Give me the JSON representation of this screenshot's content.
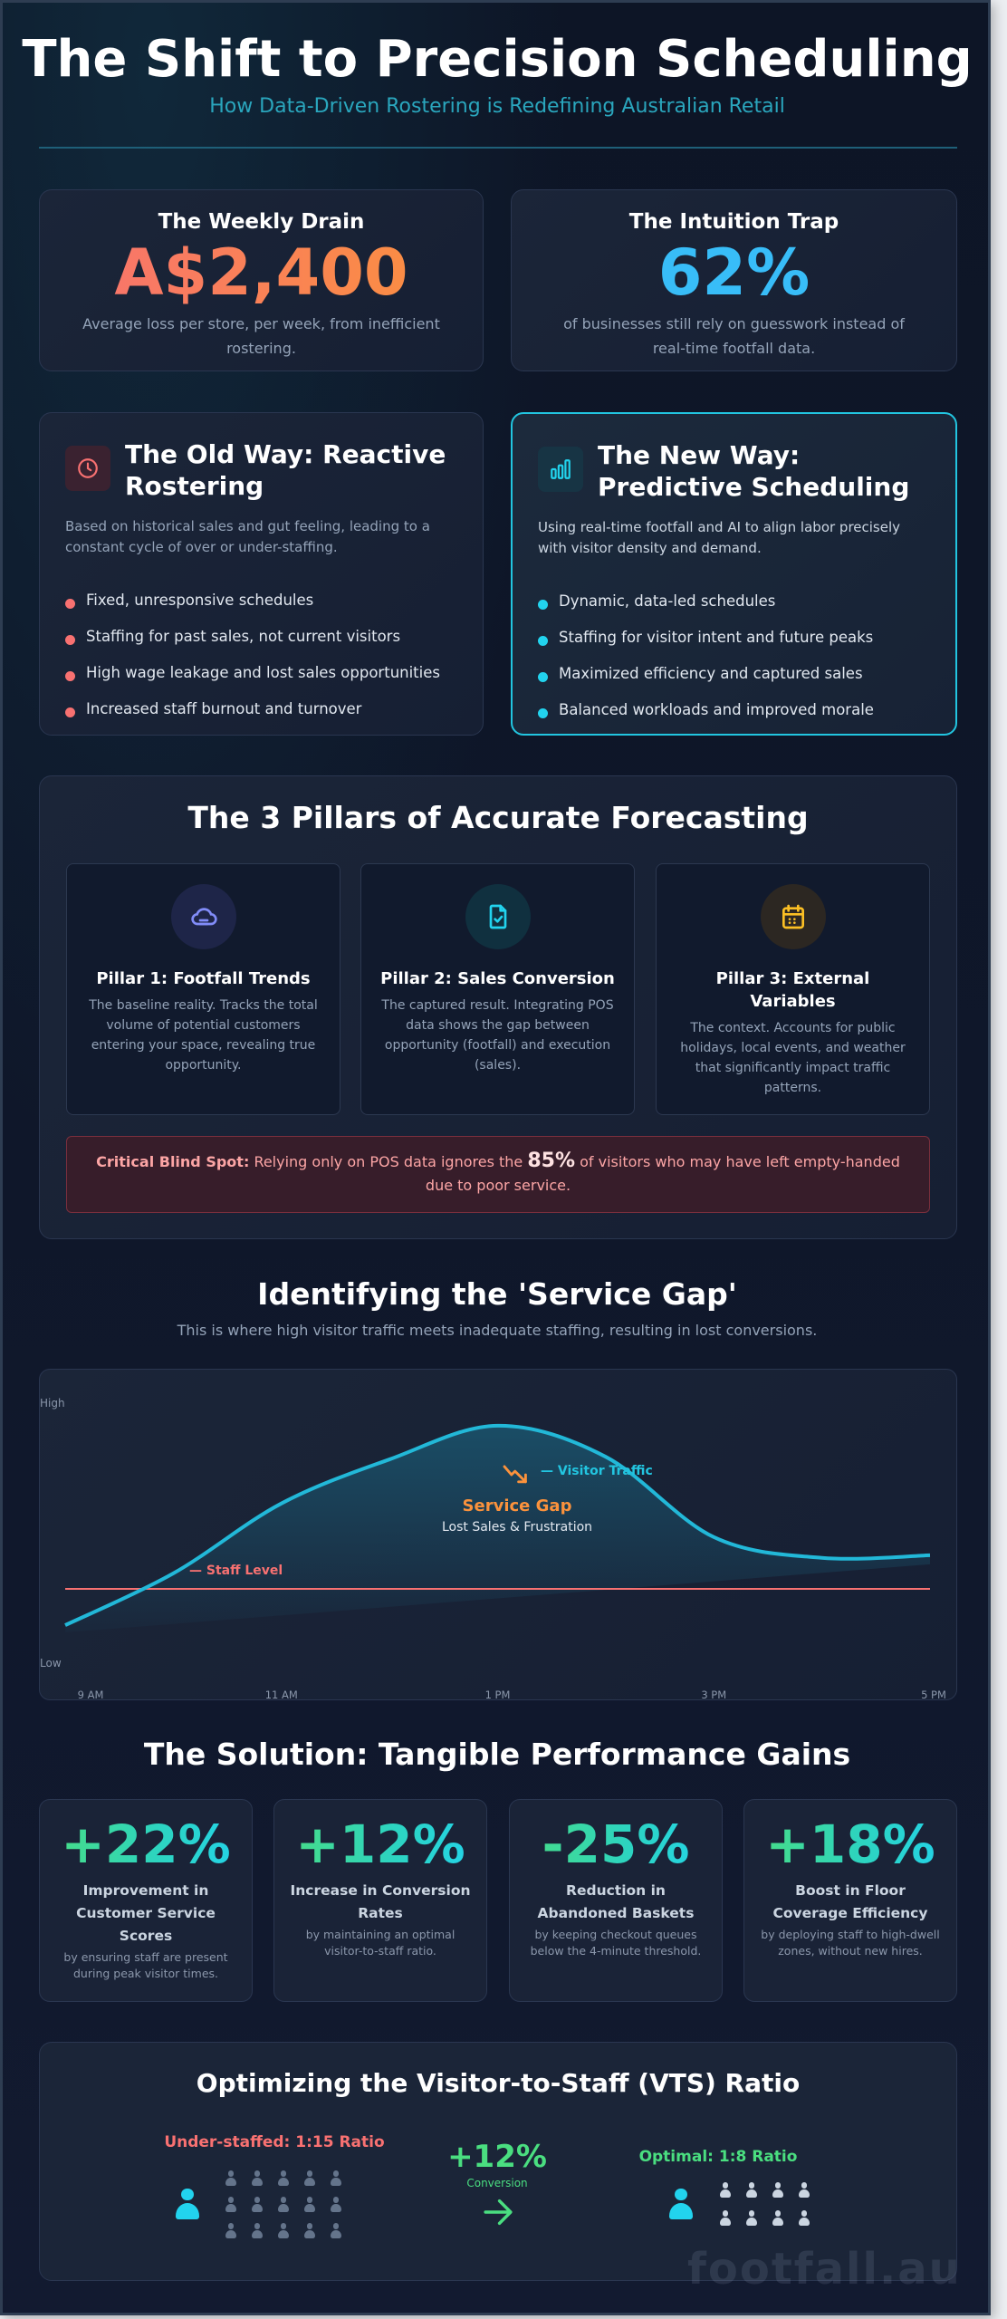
{
  "header": {
    "title": "The Shift to Precision Scheduling",
    "subtitle": "How Data-Driven Rostering is Redefining Australian Retail"
  },
  "stats": [
    {
      "title": "The Weekly Drain",
      "value": "A$2,400",
      "description": "Average loss per store, per week, from inefficient rostering.",
      "color": "#f87171"
    },
    {
      "title": "The Intuition Trap",
      "value": "62%",
      "description": "of businesses still rely on guesswork instead of real-time footfall data.",
      "color": "#38bdf8"
    }
  ],
  "old_way": {
    "icon": "clock-icon",
    "title": "The Old Way: Reactive Rostering",
    "description": "Based on historical sales and gut feeling, leading to a constant cycle of over or under-staffing.",
    "items": [
      "Fixed, unresponsive schedules",
      "Staffing for past sales, not current visitors",
      "High wage leakage and lost sales opportunities",
      "Increased staff burnout and turnover"
    ],
    "accent": "#f87171"
  },
  "new_way": {
    "icon": "bar-chart-icon",
    "title": "The New Way: Predictive Scheduling",
    "description": "Using real-time footfall and AI to align labor precisely with visitor density and demand.",
    "items": [
      "Dynamic, data-led schedules",
      "Staffing for visitor intent and future peaks",
      "Maximized efficiency and captured sales",
      "Balanced workloads and improved morale"
    ],
    "accent": "#22d3ee"
  },
  "pillars": {
    "title": "The 3 Pillars of Accurate Forecasting",
    "items": [
      {
        "icon": "cloud-icon",
        "title": "Pillar 1: Footfall Trends",
        "description": "The baseline reality. Tracks the total volume of potential customers entering your space, revealing true opportunity."
      },
      {
        "icon": "file-check-icon",
        "title": "Pillar 2: Sales Conversion",
        "description": "The captured result. Integrating POS data shows the gap between opportunity (footfall) and execution (sales)."
      },
      {
        "icon": "calendar-icon",
        "title": "Pillar 3: External Variables",
        "description": "The context. Accounts for public holidays, local events, and weather that significantly impact traffic patterns."
      }
    ],
    "alert": {
      "label": "Critical Blind Spot:",
      "text_before": "Relying only on POS data ignores the",
      "highlight": "85%",
      "text_after": "of visitors who may have left empty-handed due to poor service."
    }
  },
  "service_gap": {
    "title": "Identifying the 'Service Gap'",
    "subtitle": "This is where high visitor traffic meets inadequate staffing, resulting in lost conversions.",
    "annotation_title": "Service Gap",
    "annotation_text": "Lost Sales & Frustration",
    "annotation_icon": "trend-down-icon"
  },
  "chart_data": {
    "type": "area",
    "x": [
      9,
      10,
      11,
      12,
      13,
      14,
      15,
      16,
      17
    ],
    "x_tick_labels": [
      "9 AM",
      "11 AM",
      "1 PM",
      "3 PM",
      "5 PM"
    ],
    "x_tick_values": [
      9,
      11,
      13,
      15,
      17
    ],
    "y_tick_labels": [
      "High",
      "Low"
    ],
    "ylim": [
      0,
      100
    ],
    "series": [
      {
        "name": "Visitor Traffic",
        "values": [
          15,
          35,
          62,
          79,
          92,
          80,
          49,
          41,
          42
        ],
        "color": "#22b8d8"
      },
      {
        "name": "Staff Level",
        "values": [
          29,
          29,
          29,
          29,
          29,
          29,
          29,
          29,
          29
        ],
        "color": "#f87171"
      }
    ],
    "legend": "inline",
    "grid": false
  },
  "solution": {
    "title": "The Solution: Tangible Performance Gains",
    "items": [
      {
        "value": "+22%",
        "title": "Improvement in Customer Service Scores",
        "description": "by ensuring staff are present during peak visitor times."
      },
      {
        "value": "+12%",
        "title": "Increase in Conversion Rates",
        "description": "by maintaining an optimal visitor-to-staff ratio."
      },
      {
        "value": "-25%",
        "title": "Reduction in Abandoned Baskets",
        "description": "by keeping checkout queues below the 4-minute threshold."
      },
      {
        "value": "+18%",
        "title": "Boost in Floor Coverage Efficiency",
        "description": "by deploying staff to high-dwell zones, without new hires."
      }
    ]
  },
  "vts": {
    "title": "Optimizing the Visitor-to-Staff (VTS) Ratio",
    "under": {
      "label": "Under-staffed: 1:15 Ratio",
      "visitors": 15,
      "color": "#f87171"
    },
    "gain": {
      "value": "+12%",
      "label": "Conversion",
      "color": "#4ade80"
    },
    "optimal": {
      "label": "Optimal: 1:8 Ratio",
      "visitors": 8,
      "color": "#4ade80"
    }
  },
  "watermark": "footfall.au"
}
